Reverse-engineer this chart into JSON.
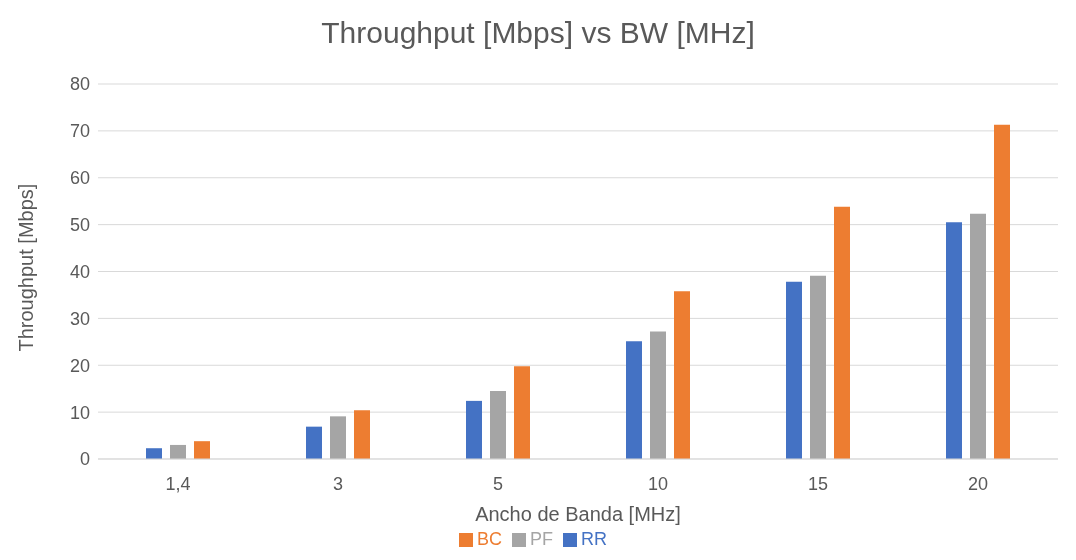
{
  "chart_data": {
    "type": "bar",
    "title": "Throughput [Mbps] vs BW [MHz]",
    "xlabel": "Ancho de Banda [MHz]",
    "ylabel": "Throughput [Mbps]",
    "categories": [
      "1,4",
      "3",
      "5",
      "10",
      "15",
      "20"
    ],
    "series": [
      {
        "name": "RR",
        "color": "#4472c4",
        "values": [
          2.3,
          6.9,
          12.4,
          25.1,
          37.8,
          50.5
        ]
      },
      {
        "name": "PF",
        "color": "#a5a5a5",
        "values": [
          3.0,
          9.1,
          14.5,
          27.2,
          39.1,
          52.3
        ]
      },
      {
        "name": "BC",
        "color": "#ed7d31",
        "values": [
          3.8,
          10.4,
          19.8,
          35.8,
          53.8,
          71.3
        ]
      }
    ],
    "ylim": [
      0,
      80
    ],
    "yticks": [
      0,
      10,
      20,
      30,
      40,
      50,
      60,
      70,
      80
    ],
    "grid": "y",
    "legend": "bottom"
  }
}
